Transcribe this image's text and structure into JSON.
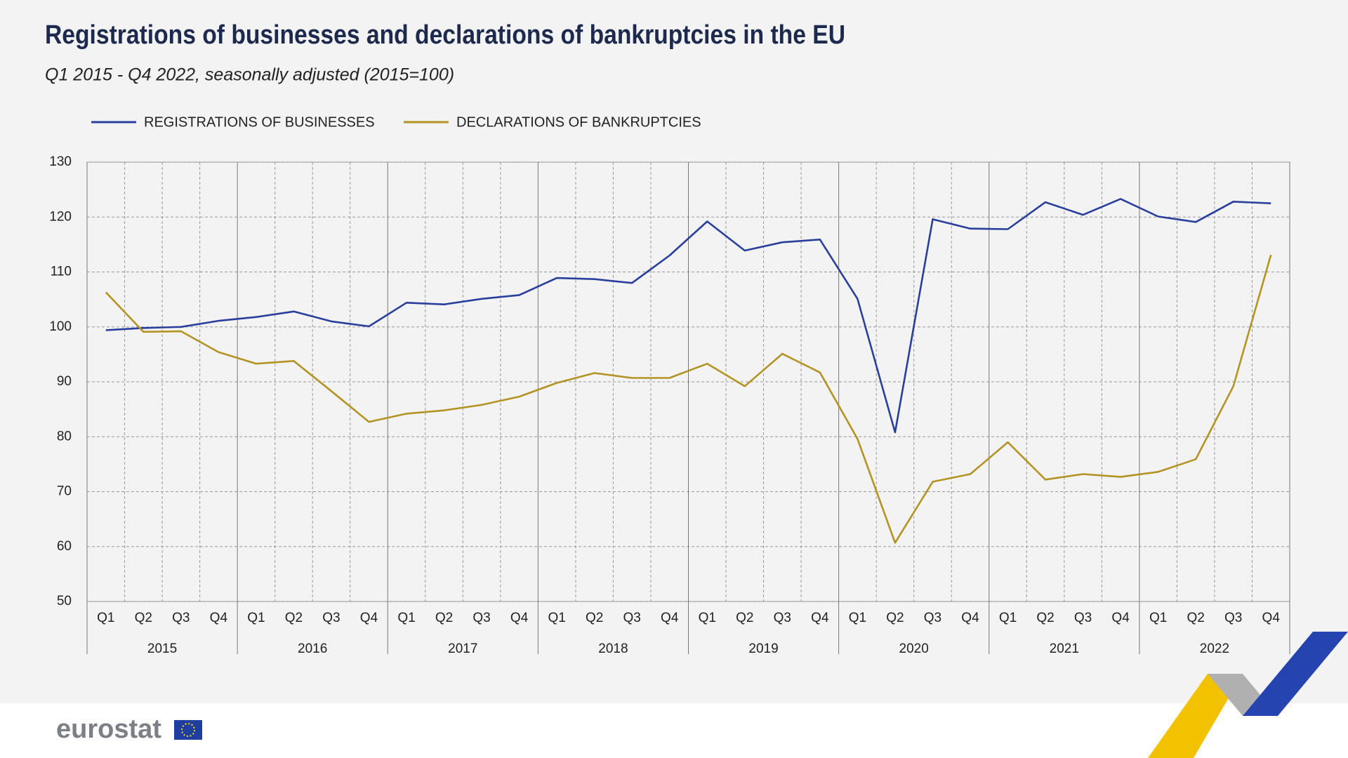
{
  "chart_data": {
    "type": "line",
    "title": "Registrations of businesses and declarations of bankruptcies in the EU",
    "subtitle": "Q1 2015 - Q4 2022, seasonally adjusted  (2015=100)",
    "categories": [
      "Q1",
      "Q2",
      "Q3",
      "Q4",
      "Q1",
      "Q2",
      "Q3",
      "Q4",
      "Q1",
      "Q2",
      "Q3",
      "Q4",
      "Q1",
      "Q2",
      "Q3",
      "Q4",
      "Q1",
      "Q2",
      "Q3",
      "Q4",
      "Q1",
      "Q2",
      "Q3",
      "Q4",
      "Q1",
      "Q2",
      "Q3",
      "Q4",
      "Q1",
      "Q2",
      "Q3",
      "Q4"
    ],
    "groups": [
      "2015",
      "2016",
      "2017",
      "2018",
      "2019",
      "2020",
      "2021",
      "2022"
    ],
    "series": [
      {
        "name": "REGISTRATIONS OF BUSINESSES",
        "color": "#2a3f9d",
        "values": [
          99.4,
          99.8,
          100.0,
          101.1,
          101.8,
          102.8,
          101.0,
          100.1,
          104.4,
          104.1,
          105.1,
          105.8,
          108.9,
          108.7,
          108.0,
          113.0,
          119.2,
          113.9,
          115.4,
          115.9,
          105.1,
          80.8,
          119.6,
          117.9,
          117.8,
          122.7,
          120.4,
          123.3,
          120.1,
          119.1,
          122.8,
          122.5
        ]
      },
      {
        "name": "DECLARATIONS OF BANKRUPTCIES",
        "color": "#b39324",
        "values": [
          106.3,
          99.1,
          99.2,
          95.4,
          93.3,
          93.8,
          88.3,
          82.7,
          84.2,
          84.8,
          85.8,
          87.3,
          89.8,
          91.6,
          90.7,
          90.7,
          93.3,
          89.2,
          95.1,
          91.7,
          79.6,
          60.7,
          71.8,
          73.2,
          79.0,
          72.2,
          73.2,
          72.7,
          73.6,
          75.9,
          89.2,
          113.1
        ]
      }
    ],
    "ylim": [
      50,
      130
    ],
    "yticks": [
      50,
      60,
      70,
      80,
      90,
      100,
      110,
      120,
      130
    ],
    "grid": true
  },
  "footer": {
    "logo": "eurostat"
  }
}
